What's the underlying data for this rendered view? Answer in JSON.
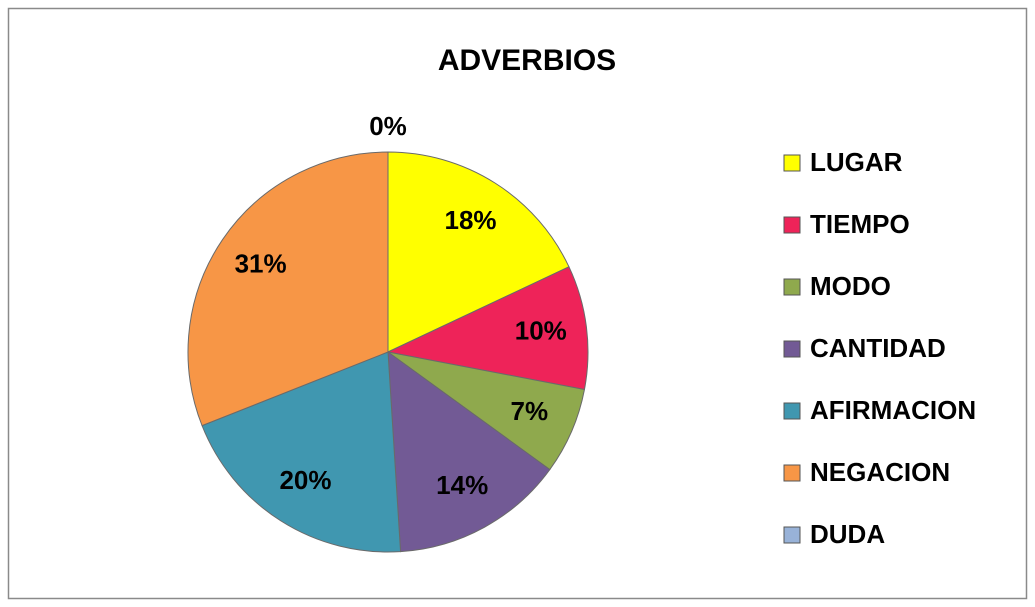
{
  "chart_data": {
    "type": "pie",
    "title": "ADVERBIOS",
    "categories": [
      "LUGAR",
      "TIEMPO",
      "MODO",
      "CANTIDAD",
      "AFIRMACION",
      "NEGACION",
      "DUDA"
    ],
    "values": [
      18,
      10,
      7,
      14,
      20,
      31,
      0
    ],
    "value_labels": [
      "18%",
      "10%",
      "7%",
      "14%",
      "20%",
      "31%",
      "0%"
    ],
    "colors": [
      "#ffff00",
      "#ee2359",
      "#8fa94d",
      "#725a95",
      "#4097b0",
      "#f79646",
      "#98b2d8"
    ],
    "legend": "right"
  }
}
